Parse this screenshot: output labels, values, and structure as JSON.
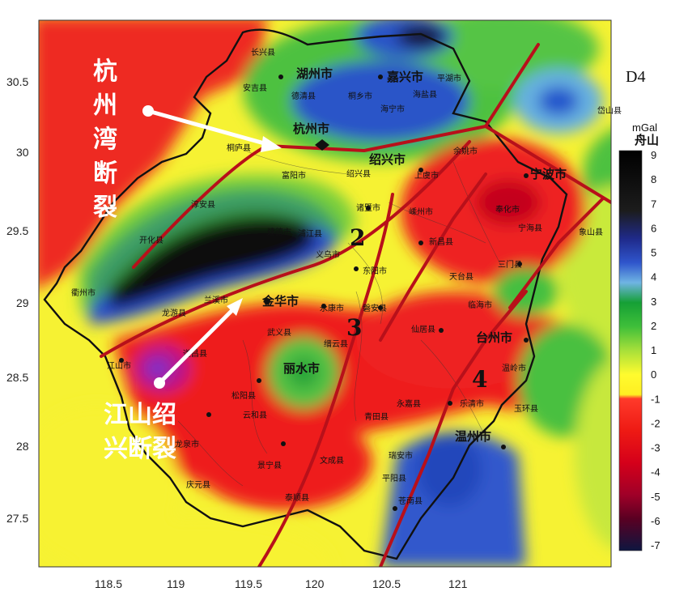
{
  "panel_id": "D4",
  "unit": "mGal",
  "colorbar": {
    "labels": [
      "9",
      "8",
      "7",
      "6",
      "5",
      "4",
      "3",
      "2",
      "1",
      "0",
      "-1",
      "-2",
      "-3",
      "-4",
      "-5",
      "-6",
      "-7"
    ],
    "colors": [
      "#0a0a0a",
      "#161616",
      "#262626",
      "#2233aa",
      "#3355cc",
      "#66aadd",
      "#22aa33",
      "#55cc44",
      "#ccee44",
      "#ffff33",
      "#ff2222",
      "#ee1111",
      "#dd0011",
      "#bb0022",
      "#880033",
      "#440022",
      "#1a1a3a"
    ]
  },
  "x_ticks": [
    "118.5",
    "119",
    "119.5",
    "120",
    "120.5",
    "121"
  ],
  "y_ticks": [
    "30.5",
    "30",
    "29.5",
    "29",
    "28.5",
    "28",
    "27.5"
  ],
  "fault_numbers": [
    "2",
    "3",
    "4"
  ],
  "annotations": {
    "hangzhou_bay_fault": [
      "杭",
      "州",
      "湾",
      "断",
      "裂"
    ],
    "jiangshan_shaoxing_fault": [
      "江山绍",
      "兴断裂"
    ]
  },
  "cities": {
    "hangzhou": "杭州市",
    "jinhua": "金华市",
    "lishui": "丽水市",
    "wenzhou": "温州市",
    "taizhou": "台州市",
    "ningbo": "宁波市",
    "jiaxing": "嘉兴市",
    "huzhou": "湖州市",
    "shaoxing": "绍兴市",
    "quzhou": "衢州市",
    "zhoushan": "舟山",
    "jiangshan": "江山市",
    "anji": "安吉县",
    "changxing": "长兴县",
    "deqing": "德清县",
    "tongxiang": "桐乡市",
    "haining": "海宁市",
    "pinghu": "平湖市",
    "haiyan": "海盐县",
    "fuyang": "富阳市",
    "shaoxingxian": "绍兴县",
    "shangyu": "上虞市",
    "yuyao": "余姚市",
    "fenghua": "奉化市",
    "xinchang": "新昌县",
    "shengzhou": "嵊州市",
    "zhuji": "诸暨市",
    "pujiang": "浦江县",
    "yiwu": "义乌市",
    "dongyang": "东阳市",
    "pan_an": "磐安县",
    "tiantai": "天台县",
    "sanmen": "三门县",
    "ninghai": "宁海县",
    "xianju": "仙居县",
    "linhai": "临海市",
    "wenling": "温岭市",
    "yuhuan": "玉环县",
    "yongkang": "永康市",
    "wuyi": "武义县",
    "jinyun": "缙云县",
    "songyang": "松阳县",
    "suichang": "遂昌县",
    "longquan": "龙泉市",
    "qingyuan": "庆元县",
    "jingning": "景宁县",
    "yunhe": "云和县",
    "qingtian": "青田县",
    "yongjia": "永嘉县",
    "leqing": "乐清市",
    "ruian": "瑞安市",
    "pingyang": "平阳县",
    "cangnan": "苍南县",
    "wencheng": "文成县",
    "taishun": "泰顺县",
    "chun_an": "淳安县",
    "jiande": "建德市",
    "lanxi": "兰溪市",
    "kaihua": "开化县",
    "longyou": "龙游县",
    "tonglu": "桐庐县",
    "xiangshan": "象山县",
    "daishan": "岱山县"
  },
  "watermark": "知乎 @青铜马弓手"
}
